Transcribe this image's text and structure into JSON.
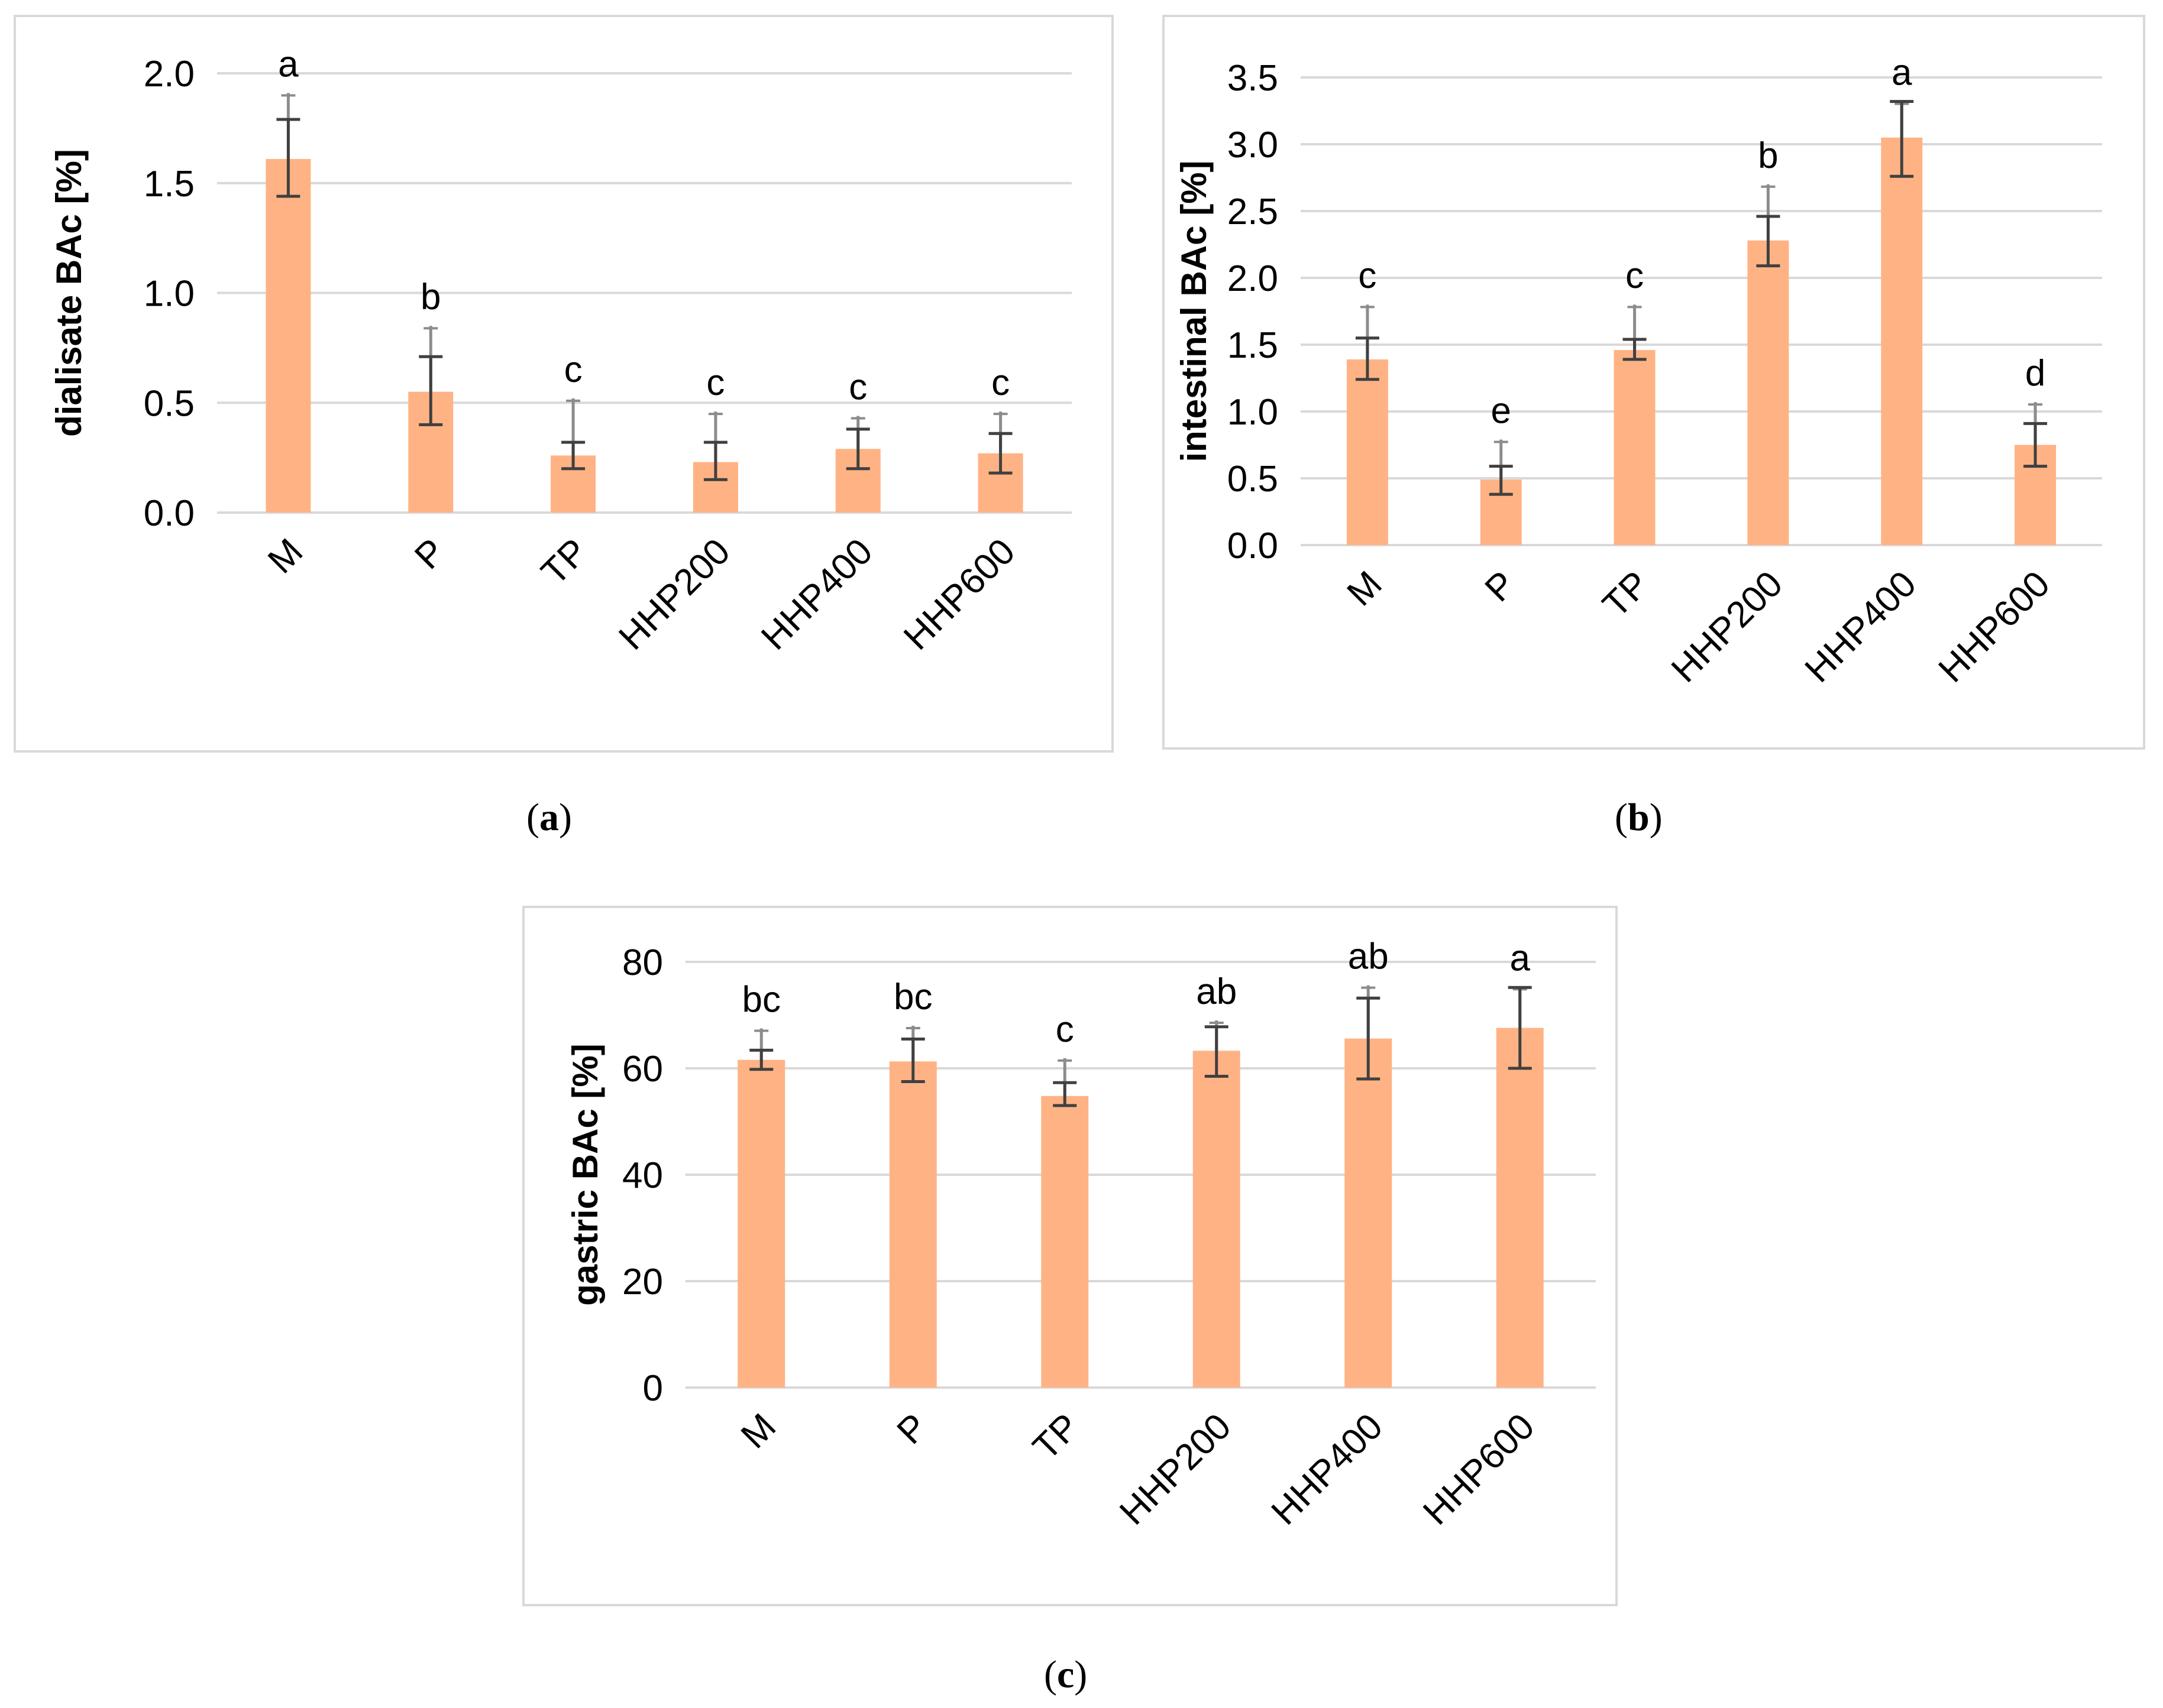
{
  "colors": {
    "bar": "#ffb385",
    "grid": "#d9d9d9",
    "axis_text": "#000000",
    "error_bar_sd": "#404040",
    "error_bar_light": "#8c8c8c"
  },
  "chart_data": [
    {
      "id": "a",
      "type": "bar",
      "caption_letter": "a",
      "caption_open": "(",
      "caption_close": ")",
      "title": "",
      "xlabel": "",
      "ylabel": "dialisate BAc [%]",
      "categories": [
        "M",
        "P",
        "TP",
        "HHP200",
        "HHP400",
        "HHP600"
      ],
      "values": [
        1.61,
        0.55,
        0.26,
        0.23,
        0.29,
        0.27
      ],
      "error_low": [
        0.17,
        0.15,
        0.06,
        0.08,
        0.09,
        0.09
      ],
      "error_high": [
        0.18,
        0.16,
        0.06,
        0.09,
        0.09,
        0.09
      ],
      "whisker_top": [
        1.91,
        0.85,
        0.52,
        0.46,
        0.44,
        0.46
      ],
      "significance_letters": [
        "a",
        "b",
        "c",
        "c",
        "c",
        "c"
      ],
      "ylim": [
        0,
        2.0
      ],
      "yticks": [
        0,
        0.5,
        1.0,
        1.5,
        2.0
      ],
      "ytick_labels": [
        "0.0",
        "0.5",
        "1.0",
        "1.5",
        "2.0"
      ],
      "grid": true,
      "legend": "none"
    },
    {
      "id": "b",
      "type": "bar",
      "caption_letter": "b",
      "caption_open": "(",
      "caption_close": ")",
      "title": "",
      "xlabel": "",
      "ylabel": "intestinal BAc [%]",
      "categories": [
        "M",
        "P",
        "TP",
        "HHP200",
        "HHP400",
        "HHP600"
      ],
      "values": [
        1.39,
        0.49,
        1.46,
        2.28,
        3.05,
        0.75
      ],
      "error_low": [
        0.15,
        0.11,
        0.07,
        0.19,
        0.29,
        0.16
      ],
      "error_high": [
        0.16,
        0.1,
        0.08,
        0.18,
        0.27,
        0.16
      ],
      "whisker_top": [
        1.8,
        0.79,
        1.8,
        2.7,
        3.32,
        1.07
      ],
      "significance_letters": [
        "c",
        "e",
        "c",
        "b",
        "a",
        "d"
      ],
      "ylim": [
        0,
        3.5
      ],
      "yticks": [
        0,
        0.5,
        1.0,
        1.5,
        2.0,
        2.5,
        3.0,
        3.5
      ],
      "ytick_labels": [
        "0.0",
        "0.5",
        "1.0",
        "1.5",
        "2.0",
        "2.5",
        "3.0",
        "3.5"
      ],
      "grid": true,
      "legend": "none"
    },
    {
      "id": "c",
      "type": "bar",
      "caption_letter": "c",
      "caption_open": "(",
      "caption_close": ")",
      "title": "",
      "xlabel": "",
      "ylabel": "gastric BAc [%]",
      "categories": [
        "M",
        "P",
        "TP",
        "HHP200",
        "HHP400",
        "HHP600"
      ],
      "values": [
        61.6,
        61.3,
        54.8,
        63.3,
        65.6,
        67.6
      ],
      "error_low": [
        1.8,
        3.8,
        1.8,
        4.8,
        7.6,
        7.6
      ],
      "error_high": [
        1.8,
        4.2,
        2.5,
        4.5,
        7.6,
        7.6
      ],
      "whisker_top": [
        67.5,
        68.0,
        61.9,
        69.0,
        75.6,
        75.3
      ],
      "significance_letters": [
        "bc",
        "bc",
        "c",
        "ab",
        "ab",
        "a"
      ],
      "ylim": [
        0,
        80
      ],
      "yticks": [
        0,
        20,
        40,
        60,
        80
      ],
      "ytick_labels": [
        "0",
        "20",
        "40",
        "60",
        "80"
      ],
      "grid": true,
      "legend": "none"
    }
  ]
}
